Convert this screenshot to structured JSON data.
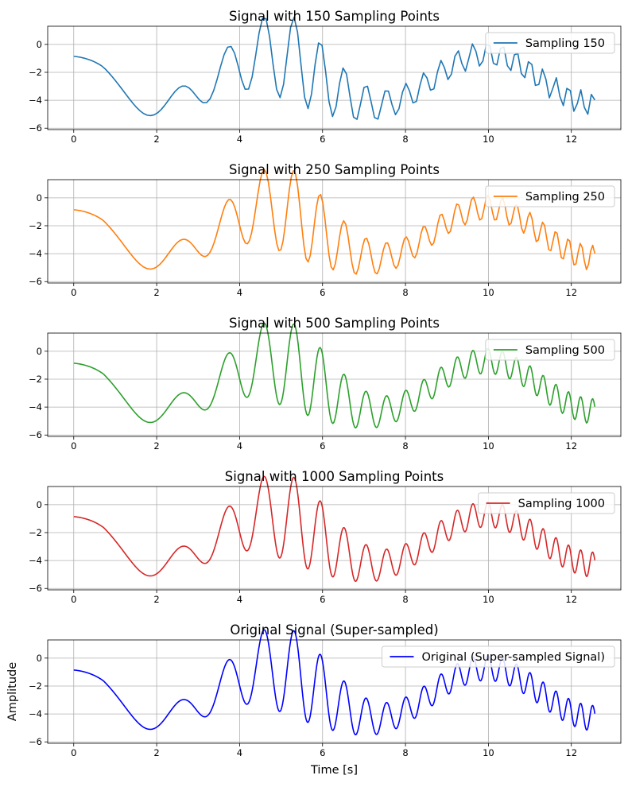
{
  "figure": {
    "xlabel": "Time [s]",
    "ylabel": "Amplitude"
  },
  "chart_data": [
    {
      "type": "line",
      "title": "Signal with 150 Sampling Points",
      "series": [
        {
          "name": "Sampling 150",
          "color": "#1f77b4",
          "samples": 150
        }
      ],
      "xlim": [
        -0.628,
        13.194
      ],
      "ylim": [
        -6.1,
        1.3
      ],
      "xticks": [
        0,
        2,
        4,
        6,
        8,
        10,
        12
      ],
      "yticks": [
        0,
        -2,
        -4,
        -6
      ],
      "grid": true,
      "legend": "top-right"
    },
    {
      "type": "line",
      "title": "Signal with 250 Sampling Points",
      "series": [
        {
          "name": "Sampling 250",
          "color": "#ff7f0e",
          "samples": 250
        }
      ],
      "xlim": [
        -0.628,
        13.194
      ],
      "ylim": [
        -6.1,
        1.3
      ],
      "xticks": [
        0,
        2,
        4,
        6,
        8,
        10,
        12
      ],
      "yticks": [
        0,
        -2,
        -4,
        -6
      ],
      "grid": true,
      "legend": "top-right"
    },
    {
      "type": "line",
      "title": "Signal with 500 Sampling Points",
      "series": [
        {
          "name": "Sampling 500",
          "color": "#2ca02c",
          "samples": 500
        }
      ],
      "xlim": [
        -0.628,
        13.194
      ],
      "ylim": [
        -6.1,
        1.3
      ],
      "xticks": [
        0,
        2,
        4,
        6,
        8,
        10,
        12
      ],
      "yticks": [
        0,
        -2,
        -4,
        -6
      ],
      "grid": true,
      "legend": "top-right"
    },
    {
      "type": "line",
      "title": "Signal with 1000 Sampling Points",
      "series": [
        {
          "name": "Sampling 1000",
          "color": "#d62728",
          "samples": 1000
        }
      ],
      "xlim": [
        -0.628,
        13.194
      ],
      "ylim": [
        -6.1,
        1.3
      ],
      "xticks": [
        0,
        2,
        4,
        6,
        8,
        10,
        12
      ],
      "yticks": [
        0,
        -2,
        -4,
        -6
      ],
      "grid": true,
      "legend": "top-right"
    },
    {
      "type": "line",
      "title": "Original Signal (Super-sampled)",
      "series": [
        {
          "name": "Original (Super-sampled Signal)",
          "color": "#0000ff",
          "samples": 3000
        }
      ],
      "xlim": [
        -0.628,
        13.194
      ],
      "ylim": [
        -6.1,
        1.3
      ],
      "xticks": [
        0,
        2,
        4,
        6,
        8,
        10,
        12
      ],
      "yticks": [
        0,
        -2,
        -4,
        -6
      ],
      "grid": true,
      "legend": "top-right"
    }
  ]
}
